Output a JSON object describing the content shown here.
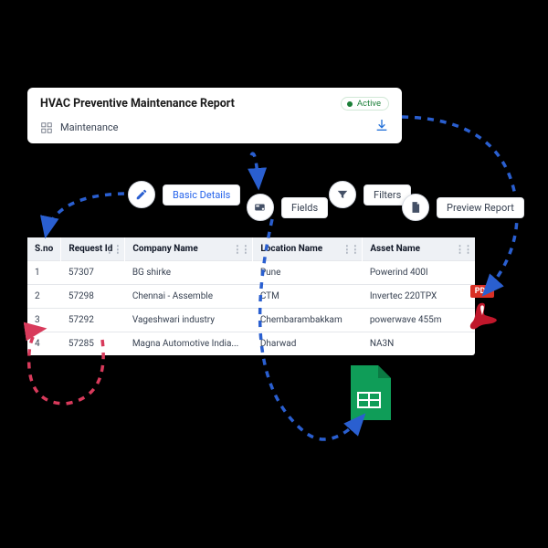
{
  "colors": {
    "accent_blue": "#2563eb",
    "arrow_blue": "#2a5fd0",
    "arrow_red": "#d83a5b",
    "status_green": "#1a7f37",
    "excel_green": "#0f9d58",
    "pdf_red": "#d93025",
    "pdf_swoosh": "#c0172b",
    "header_bg": "#eef1f5"
  },
  "header": {
    "title": "HVAC Preventive Maintenance Report",
    "status": "Active",
    "module": "Maintenance"
  },
  "steps": {
    "basic": "Basic Details",
    "fields": "Fields",
    "filters": "Filters",
    "preview": "Preview Report"
  },
  "table": {
    "columns": [
      "S.no",
      "Request Id",
      "Company Name",
      "Location Name",
      "Asset Name"
    ],
    "rows": [
      [
        "1",
        "57307",
        "BG shirke",
        "Pune",
        "Powerind 400I"
      ],
      [
        "2",
        "57298",
        "Chennai - Assemble",
        "CTM",
        "Invertec 220TPX"
      ],
      [
        "3",
        "57292",
        "Vageshwari industry",
        "Chembarambakkam",
        "powerwave 455m"
      ],
      [
        "4",
        "57285",
        "Magna Automotive India...",
        "Dharwad",
        "NA3N"
      ]
    ]
  },
  "pdf_label": "PDF"
}
